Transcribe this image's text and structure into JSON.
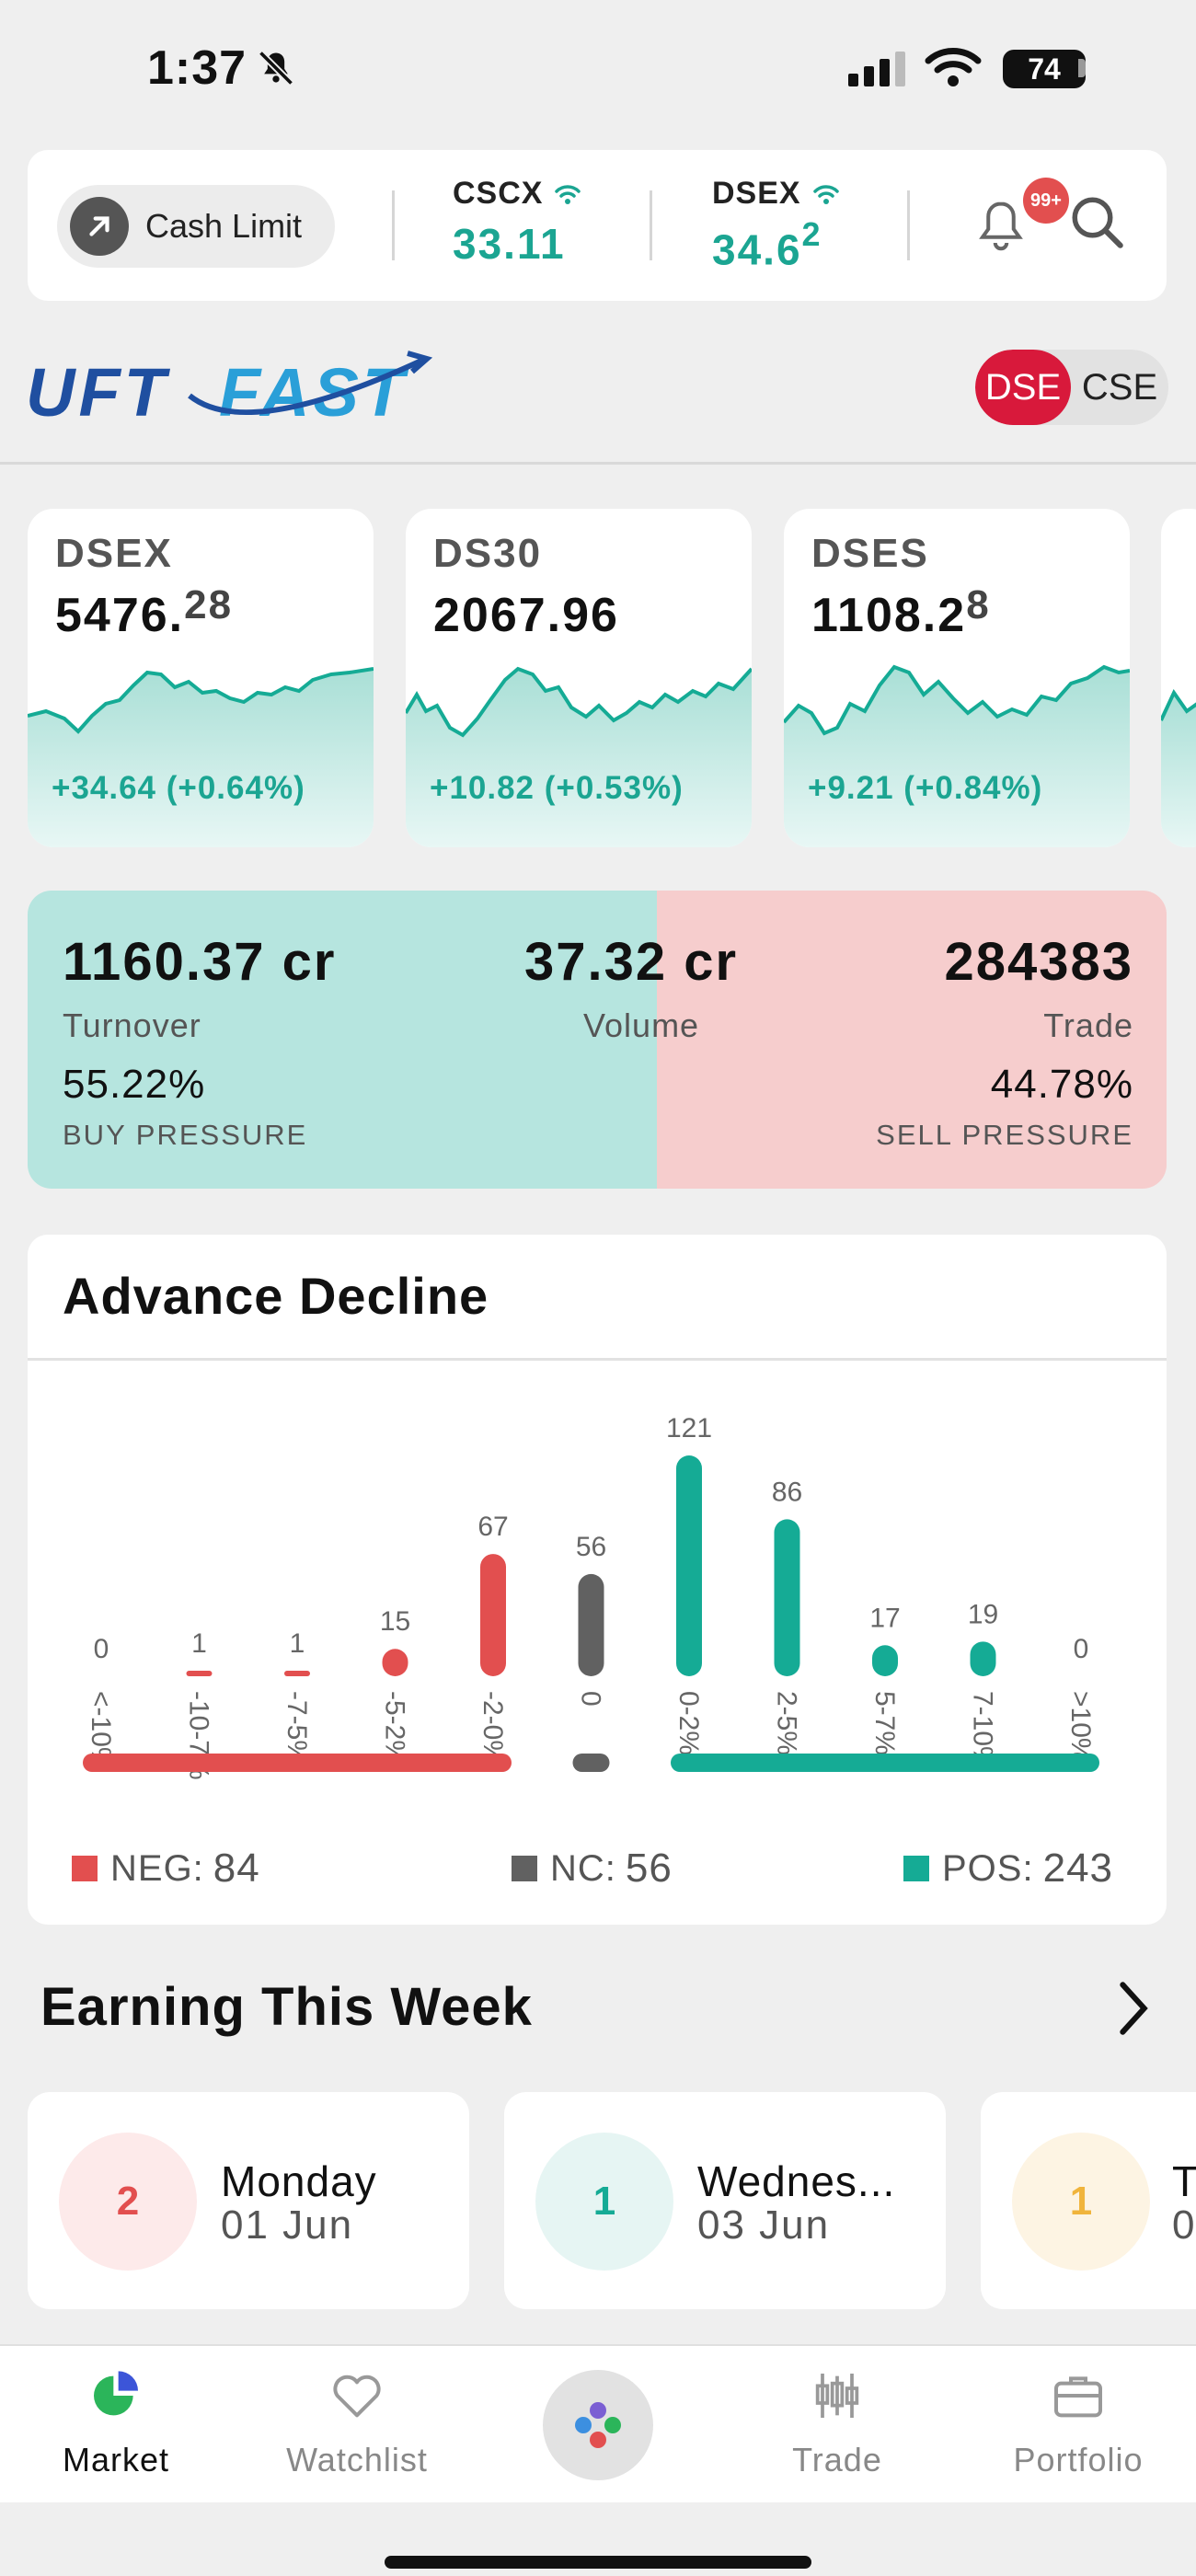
{
  "status": {
    "time": "1:37",
    "battery": "74"
  },
  "topbar": {
    "cash_limit": "Cash Limit",
    "indices": [
      {
        "name": "CSCX",
        "value": "33.11"
      },
      {
        "name": "DSEX",
        "value": "34.6",
        "sup": "2"
      }
    ],
    "notif_badge": "99+"
  },
  "brand": {
    "logo_text": "UFTFAST"
  },
  "exchange_toggle": {
    "active": "DSE",
    "inactive": "CSE"
  },
  "market_cards": [
    {
      "name": "DSEX",
      "value": "5476.",
      "value_tail": "28",
      "change": "+34.64 (+0.64%)"
    },
    {
      "name": "DS30",
      "value": "2067.96",
      "value_tail": "",
      "change": "+10.82 (+0.53%)"
    },
    {
      "name": "DSES",
      "value": "1108.2",
      "value_tail": "8",
      "change": "+9.21  (+0.84%)"
    }
  ],
  "pressure": {
    "turnover_value": "1160.37 cr",
    "turnover_label": "Turnover",
    "volume_value": "37.32 cr",
    "volume_label": "Volume",
    "trade_value": "284383",
    "trade_label": "Trade",
    "buy_pct": "55.22%",
    "buy_label": "BUY PRESSURE",
    "sell_pct": "44.78%",
    "sell_label": "SELL PRESSURE",
    "buy_fraction": 0.5522
  },
  "advance_decline": {
    "title": "Advance Decline",
    "legend": {
      "neg_label": "NEG:",
      "neg_value": "84",
      "nc_label": "NC:",
      "nc_value": "56",
      "pos_label": "POS:",
      "pos_value": "243"
    },
    "colors": {
      "neg": "#e24f4f",
      "nc": "#616161",
      "pos": "#15ab95"
    }
  },
  "chart_data": {
    "type": "bar",
    "title": "Advance Decline",
    "categories": [
      "<-10%",
      "-10-7%",
      "-7-5%",
      "-5-2%",
      "-2-0%",
      "0",
      "0-2%",
      "2-5%",
      "5-7%",
      "7-10%",
      ">10%"
    ],
    "values": [
      0,
      1,
      1,
      15,
      67,
      56,
      121,
      86,
      17,
      19,
      0
    ],
    "groups": [
      "neg",
      "neg",
      "neg",
      "neg",
      "neg",
      "nc",
      "pos",
      "pos",
      "pos",
      "pos",
      "pos"
    ],
    "ylim": [
      0,
      121
    ]
  },
  "earnings": {
    "title": "Earning This Week",
    "items": [
      {
        "count": "2",
        "day": "Monday",
        "date": "01 Jun",
        "color": "#e24f4f",
        "bg": "#fdeaea"
      },
      {
        "count": "1",
        "day": "Wednes...",
        "date": "03 Jun",
        "color": "#15ab95",
        "bg": "#e6f5f3"
      },
      {
        "count": "1",
        "day": "T",
        "date": "0",
        "color": "#f0b43c",
        "bg": "#fdf4e3"
      }
    ]
  },
  "nav": {
    "market": "Market",
    "watchlist": "Watchlist",
    "trade": "Trade",
    "portfolio": "Portfolio"
  }
}
